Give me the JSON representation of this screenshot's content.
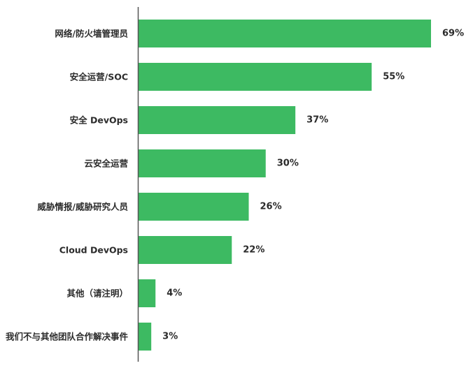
{
  "chart_data": {
    "type": "bar",
    "orientation": "horizontal",
    "categories": [
      "网络/防火墙管理员",
      "安全运营/SOC",
      "安全 DevOps",
      "云安全运营",
      "威胁情报/威胁研究人员",
      "Cloud DevOps",
      "其他（请注明）",
      "我们不与其他团队合作解决事件"
    ],
    "values": [
      69,
      55,
      37,
      30,
      26,
      22,
      4,
      3
    ],
    "value_labels": [
      "69%",
      "55%",
      "37%",
      "30%",
      "26%",
      "22%",
      "4%",
      "3%"
    ],
    "unit": "%",
    "bar_color": "#3dba62",
    "axis_color": "#555555",
    "text_color": "#2b2b2b",
    "grid": false,
    "legend": "none"
  }
}
